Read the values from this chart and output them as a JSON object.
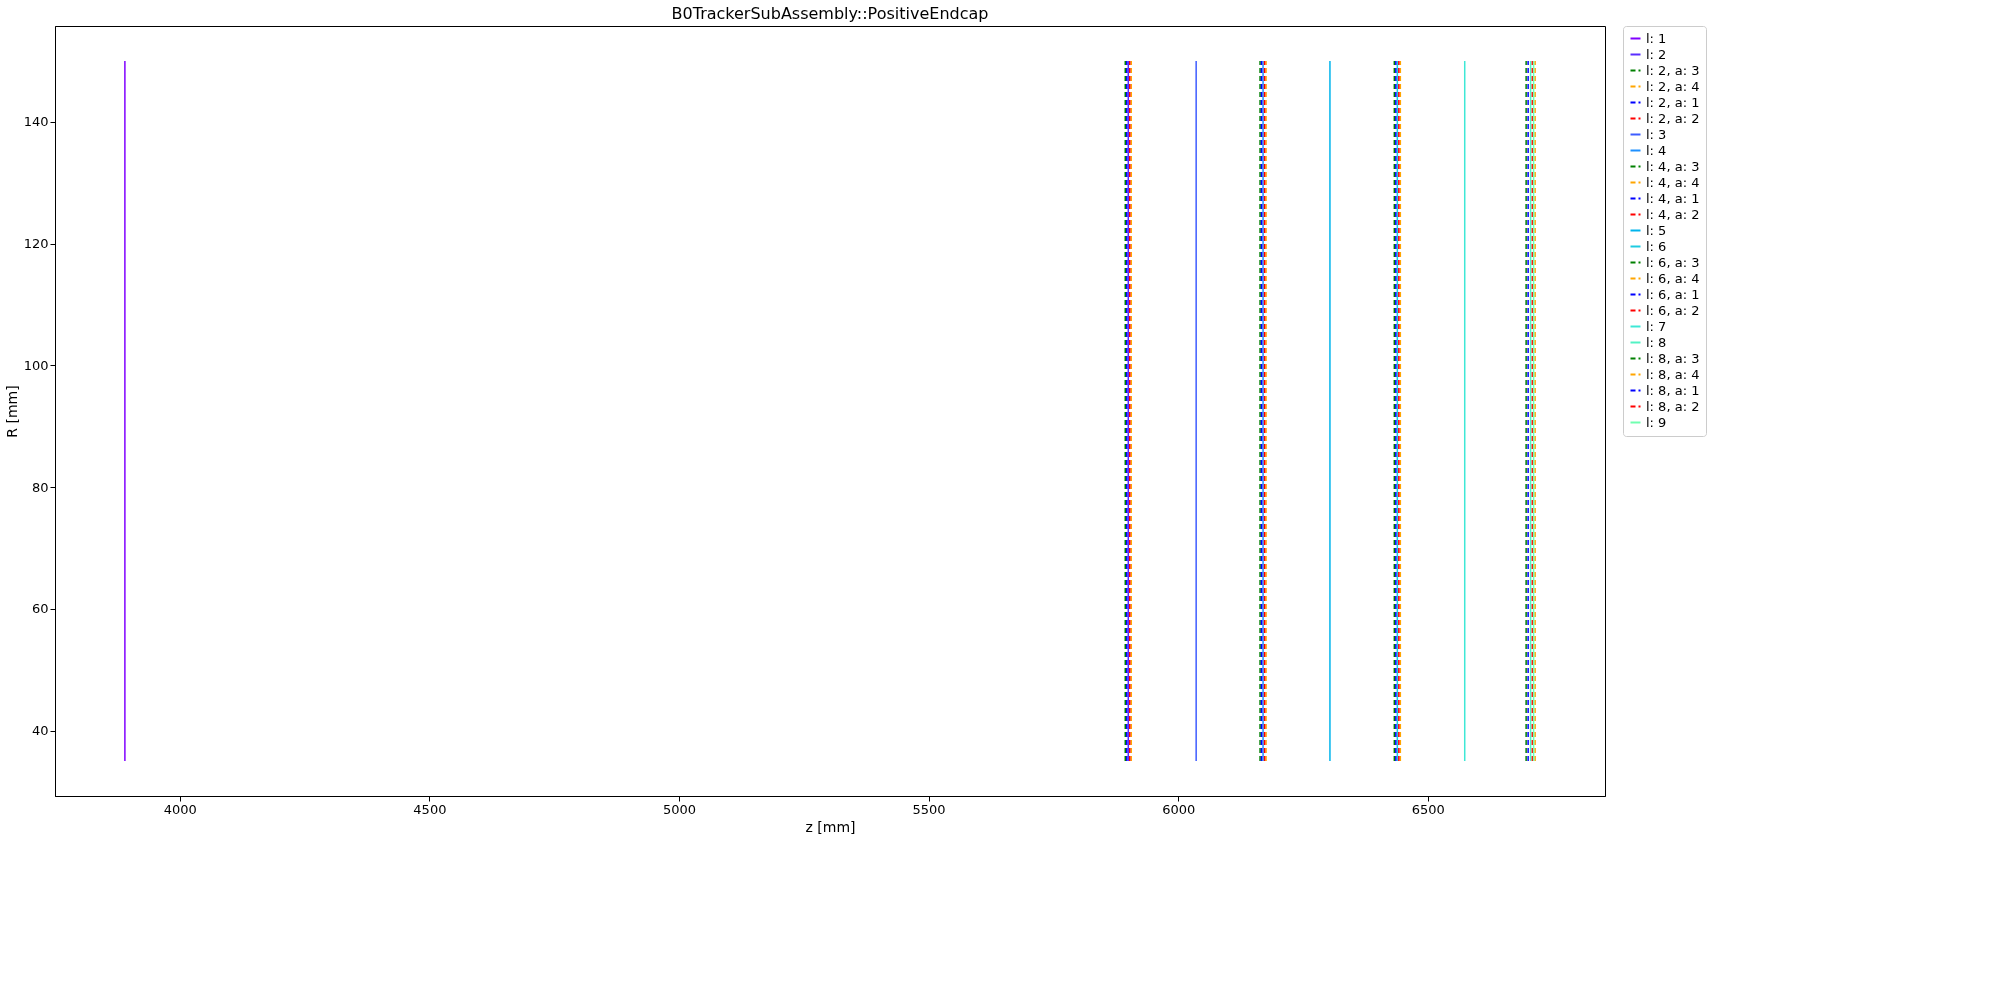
{
  "chart_data": {
    "type": "line",
    "title": "B0TrackerSubAssembly::PositiveEndcap",
    "xlabel": "z [mm]",
    "ylabel": "R [mm]",
    "xlim": [
      3750,
      6855
    ],
    "ylim": [
      29.25,
      155.75
    ],
    "xticks": [
      4000,
      4500,
      5000,
      5500,
      6000,
      6500
    ],
    "yticks": [
      40,
      60,
      80,
      100,
      120,
      140
    ],
    "grid": false,
    "legend": "right",
    "marker": "none",
    "series": [
      {
        "name": "l: 1",
        "color": "#8000ff",
        "x": [
          3890,
          3890
        ],
        "values": [
          35,
          150
        ],
        "line_style": "solid"
      },
      {
        "name": "l: 2",
        "color": "#5a2dff",
        "x": [
          5900,
          5900
        ],
        "values": [
          35,
          150
        ],
        "line_style": "solid"
      },
      {
        "name": "l: 2, a: 3",
        "color": "#008000",
        "x": [
          5894,
          5894
        ],
        "values": [
          35,
          150
        ],
        "line_style": "dashed"
      },
      {
        "name": "l: 2, a: 4",
        "color": "#ffa500",
        "x": [
          5906,
          5906
        ],
        "values": [
          35,
          150
        ],
        "line_style": "dashed"
      },
      {
        "name": "l: 2, a: 1",
        "color": "#0000ff",
        "x": [
          5897,
          5897
        ],
        "values": [
          35,
          150
        ],
        "line_style": "dashed"
      },
      {
        "name": "l: 2, a: 2",
        "color": "#ff0000",
        "x": [
          5903,
          5903
        ],
        "values": [
          35,
          150
        ],
        "line_style": "dashed"
      },
      {
        "name": "l: 3",
        "color": "#3d5cff",
        "x": [
          6036,
          6036
        ],
        "values": [
          35,
          150
        ],
        "line_style": "solid"
      },
      {
        "name": "l: 4",
        "color": "#1e90ff",
        "x": [
          6170,
          6170
        ],
        "values": [
          35,
          150
        ],
        "line_style": "solid"
      },
      {
        "name": "l: 4, a: 3",
        "color": "#008000",
        "x": [
          6164,
          6164
        ],
        "values": [
          35,
          150
        ],
        "line_style": "dashed"
      },
      {
        "name": "l: 4, a: 4",
        "color": "#ffa500",
        "x": [
          6176,
          6176
        ],
        "values": [
          35,
          150
        ],
        "line_style": "dashed"
      },
      {
        "name": "l: 4, a: 1",
        "color": "#0000ff",
        "x": [
          6167,
          6167
        ],
        "values": [
          35,
          150
        ],
        "line_style": "dashed"
      },
      {
        "name": "l: 4, a: 2",
        "color": "#ff0000",
        "x": [
          6173,
          6173
        ],
        "values": [
          35,
          150
        ],
        "line_style": "dashed"
      },
      {
        "name": "l: 5",
        "color": "#00b4ec",
        "x": [
          6304,
          6304
        ],
        "values": [
          35,
          150
        ],
        "line_style": "solid"
      },
      {
        "name": "l: 6",
        "color": "#1ecbe1",
        "x": [
          6439,
          6439
        ],
        "values": [
          35,
          150
        ],
        "line_style": "solid"
      },
      {
        "name": "l: 6, a: 3",
        "color": "#008000",
        "x": [
          6433,
          6433
        ],
        "values": [
          35,
          150
        ],
        "line_style": "dashed"
      },
      {
        "name": "l: 6, a: 4",
        "color": "#ffa500",
        "x": [
          6445,
          6445
        ],
        "values": [
          35,
          150
        ],
        "line_style": "dashed"
      },
      {
        "name": "l: 6, a: 1",
        "color": "#0000ff",
        "x": [
          6436,
          6436
        ],
        "values": [
          35,
          150
        ],
        "line_style": "dashed"
      },
      {
        "name": "l: 6, a: 2",
        "color": "#ff0000",
        "x": [
          6442,
          6442
        ],
        "values": [
          35,
          150
        ],
        "line_style": "dashed"
      },
      {
        "name": "l: 7",
        "color": "#3ee8d6",
        "x": [
          6574,
          6574
        ],
        "values": [
          35,
          150
        ],
        "line_style": "solid"
      },
      {
        "name": "l: 8",
        "color": "#52f2c4",
        "x": [
          6706,
          6706
        ],
        "values": [
          35,
          150
        ],
        "line_style": "solid"
      },
      {
        "name": "l: 8, a: 3",
        "color": "#008000",
        "x": [
          6697,
          6697
        ],
        "values": [
          35,
          150
        ],
        "line_style": "dashed"
      },
      {
        "name": "l: 8, a: 4",
        "color": "#ffa500",
        "x": [
          6715,
          6715
        ],
        "values": [
          35,
          150
        ],
        "line_style": "dashed"
      },
      {
        "name": "l: 8, a: 1",
        "color": "#0000ff",
        "x": [
          6701,
          6701
        ],
        "values": [
          35,
          150
        ],
        "line_style": "dashed"
      },
      {
        "name": "l: 8, a: 2",
        "color": "#ff0000",
        "x": [
          6709.5,
          6709.5
        ],
        "values": [
          35,
          150
        ],
        "line_style": "dashed"
      },
      {
        "name": "l: 9",
        "color": "#70ffb0",
        "x": [
          6712,
          6712
        ],
        "values": [
          35,
          150
        ],
        "line_style": "solid"
      }
    ]
  }
}
